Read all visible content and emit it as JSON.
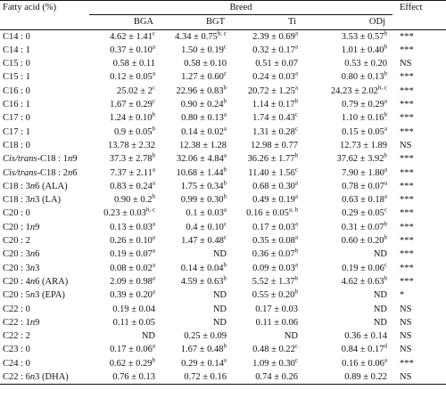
{
  "table": {
    "header": {
      "first_col": "Fatty acid (%)",
      "group": "Breed",
      "effect": "Effect",
      "breeds": [
        "BGA",
        "BGT",
        "Ti",
        "ODj"
      ]
    },
    "rows": [
      {
        "label": "C14 : 0",
        "v": [
          "4.62 ± 1.41c",
          "4.34 ± 0.75b, c",
          "2.39 ± 0.69a",
          "3.53 ± 0.57b"
        ],
        "e": "***"
      },
      {
        "label": "C14 : 1",
        "v": [
          "0.37 ± 0.10a",
          "1.50 ± 0.19c",
          "0.32 ± 0.17a",
          "1.01 ± 0.40b"
        ],
        "e": "***"
      },
      {
        "label": "C15 : 0",
        "v": [
          "0.58 ± 0.11",
          "0.58 ± 0.10",
          "0.51 ± 0.07",
          "0.53 ± 0.20"
        ],
        "e": "NS"
      },
      {
        "label": "C15 : 1",
        "v": [
          "0.12 ± 0.05a",
          "1.27 ± 0.60c",
          "0.24 ± 0.03a",
          "0.80 ± 0.13b"
        ],
        "e": "***"
      },
      {
        "label": "C16 : 0",
        "v": [
          "25.02 ± 2c",
          "22.96 ± 0.83b",
          "20.72 ± 1.25a",
          "24.23 ± 2.02b, c"
        ],
        "e": "***"
      },
      {
        "label": "C16 : 1",
        "v": [
          "1.67 ± 0.29c",
          "0.90 ± 0.24b",
          "1.14 ± 0.17b",
          "0.79 ± 0.29a"
        ],
        "e": "***"
      },
      {
        "label": "C17 : 0",
        "v": [
          "1.24 ± 0.10b",
          "0.80 ± 0.13a",
          "1.74 ± 0.43c",
          "1.10 ± 0.16b"
        ],
        "e": "***"
      },
      {
        "label": "C17 : 1",
        "v": [
          "0.9 ± 0.05b",
          "0.14 ± 0.02a",
          "1.31 ± 0.28c",
          "0.15 ± 0.05a"
        ],
        "e": "***"
      },
      {
        "label": "C18 : 0",
        "v": [
          "13.78 ± 2.32",
          "12.38 ± 1.28",
          "12.98 ± 0.77",
          "12.73 ± 1.89"
        ],
        "e": "NS"
      },
      {
        "label": "Cis/trans-C18 : 1n9",
        "v": [
          "37.3 ± 2.78b",
          "32.06 ± 4.84a",
          "36.26 ± 1.77b",
          "37.62 ± 3.92b"
        ],
        "e": "***"
      },
      {
        "label": "Cis/trans-C18 : 2n6",
        "v": [
          "7.37 ± 2.11a",
          "10.68 ± 1.44b",
          "11.40 ± 1.56c",
          "7.90 ± 1.80a"
        ],
        "e": "***"
      },
      {
        "label": "C18 : 3n6 (ALA)",
        "v": [
          "0.83 ± 0.24a",
          "1.75 ± 0.34b",
          "0.68 ± 0.30a",
          "0.78 ± 0.07a"
        ],
        "e": "***"
      },
      {
        "label": "C18 : 3n3 (LA)",
        "v": [
          "0.90 ± 0.2b",
          "0.99 ± 0.30b",
          "0.49 ± 0.19a",
          "0.63 ± 0.18a"
        ],
        "e": "***"
      },
      {
        "label": "C20 : 0",
        "v": [
          "0.23 ± 0.03b, c",
          "0.1 ± 0.03a",
          "0.16 ± 0.05a, b",
          "0.29 ± 0.05c"
        ],
        "e": "***"
      },
      {
        "label": "C20 : 1n9",
        "v": [
          "0.13 ± 0.03a",
          "0.4 ± 0.10c",
          "0.17 ± 0.03a",
          "0.31 ± 0.07b"
        ],
        "e": "***"
      },
      {
        "label": "C20 : 2",
        "v": [
          "0.26 ± 0.10a",
          "1.47 ± 0.48c",
          "0.35 ± 0.08a",
          "0.60 ± 0.20b"
        ],
        "e": "***"
      },
      {
        "label": "C20 : 3n6",
        "v": [
          "0.19 ± 0.07a",
          "ND",
          "0.36 ± 0.07b",
          "ND"
        ],
        "e": "***"
      },
      {
        "label": "C20 : 3n3",
        "v": [
          "0.08 ± 0.02a",
          "0.14 ± 0.04b",
          "0.09 ± 0.03a",
          "0.19 ± 0.06c"
        ],
        "e": "***"
      },
      {
        "label": "C20 : 4n6 (ARA)",
        "v": [
          "2.09 ± 0.98a",
          "4.59 ± 0.63b",
          "5.52 ± 1.37b",
          "4.62 ± 0.63b"
        ],
        "e": "***"
      },
      {
        "label": "C20 : 5n3 (EPA)",
        "v": [
          "0.39 ± 0.20a",
          "ND",
          "0.55 ± 0.20b",
          "ND"
        ],
        "e": "*"
      },
      {
        "label": "C22 : 0",
        "v": [
          "0.19 ± 0.04",
          "ND",
          "0.17 ± 0.03",
          "ND"
        ],
        "e": "NS"
      },
      {
        "label": "C22 : 1n9",
        "v": [
          "0.11 ± 0.05",
          "ND",
          "0.11 ± 0.06",
          "ND"
        ],
        "e": "NS"
      },
      {
        "label": "C22 : 2",
        "v": [
          "ND",
          "0.25 ± 0.09",
          "ND",
          "0.36 ± 0.14"
        ],
        "e": "NS"
      },
      {
        "label": "C23 : 0",
        "v": [
          "0.17 ± 0.06a",
          "1.67 ± 0.48b",
          "0.48 ± 0.22c",
          "0.84 ± 0.17d"
        ],
        "e": "NS"
      },
      {
        "label": "C24 : 0",
        "v": [
          "0.62 ± 0.29b",
          "0.29 ± 0.14a",
          "1.09 ± 0.30c",
          "0.16 ± 0.06a"
        ],
        "e": "***"
      },
      {
        "label": "C22 : 6n3 (DHA)",
        "v": [
          "0.76 ± 0.13",
          "0.72 ± 0.16",
          "0.74 ± 0.26",
          "0.89 ± 0.22"
        ],
        "e": "NS"
      }
    ]
  }
}
